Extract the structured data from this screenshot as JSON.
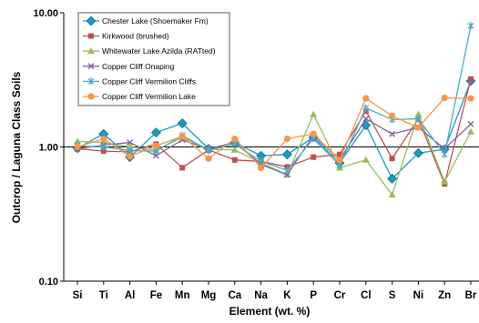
{
  "chart_data": {
    "type": "line",
    "title": "",
    "xlabel": "Element (wt. %)",
    "ylabel": "Outcrop / Laguna Class Soils",
    "yscale": "log",
    "ylim": [
      0.1,
      10
    ],
    "yticks": [
      "0.10",
      "1.00",
      "10.00"
    ],
    "reference_line": 1.0,
    "grid": false,
    "legend_position": "top-left",
    "categories": [
      "Si",
      "Ti",
      "Al",
      "Fe",
      "Mn",
      "Mg",
      "Ca",
      "Na",
      "K",
      "P",
      "Cr",
      "Cl",
      "S",
      "Ni",
      "Zn",
      "Br"
    ],
    "series": [
      {
        "name": "Chester Lake (Shoemaker Fm)",
        "color": "#0f9fc7",
        "marker": "diamond",
        "values": [
          0.98,
          1.25,
          0.84,
          1.28,
          1.5,
          0.97,
          1.08,
          0.86,
          0.88,
          1.18,
          0.76,
          1.45,
          0.58,
          0.9,
          0.96,
          3.1
        ]
      },
      {
        "name": "Kirkwood (brushed)",
        "color": "#c0504d",
        "marker": "square",
        "values": [
          0.97,
          0.93,
          0.92,
          1.05,
          0.7,
          0.95,
          0.8,
          0.78,
          0.71,
          0.84,
          0.88,
          1.85,
          0.82,
          1.62,
          0.53,
          3.2
        ]
      },
      {
        "name": "Whitewater Lake Azilda (RATted)",
        "color": "#9bbb59",
        "marker": "triangle",
        "values": [
          1.1,
          1.08,
          1.0,
          0.95,
          1.18,
          0.96,
          0.95,
          0.76,
          0.62,
          1.75,
          0.7,
          0.8,
          0.44,
          1.75,
          0.55,
          1.3
        ]
      },
      {
        "name": "Copper Cliff Onaping",
        "color": "#8064a2",
        "marker": "x",
        "values": [
          0.97,
          1.03,
          1.08,
          0.86,
          1.13,
          0.96,
          1.08,
          0.74,
          0.62,
          1.22,
          0.8,
          1.62,
          1.25,
          1.4,
          0.97,
          1.48
        ]
      },
      {
        "name": "Copper Cliff Vermilion Cliffs",
        "color": "#4bacc6",
        "marker": "star",
        "values": [
          1.02,
          1.0,
          0.94,
          0.93,
          1.22,
          0.94,
          1.05,
          0.78,
          0.67,
          1.15,
          0.73,
          1.95,
          1.6,
          1.62,
          0.88,
          8.0
        ]
      },
      {
        "name": "Copper Cliff Vermilion Lake",
        "color": "#f79646",
        "marker": "circle",
        "values": [
          1.0,
          1.15,
          0.85,
          1.02,
          1.2,
          0.82,
          1.15,
          0.7,
          1.15,
          1.25,
          0.8,
          2.3,
          1.7,
          1.4,
          2.32,
          2.3
        ]
      }
    ]
  }
}
